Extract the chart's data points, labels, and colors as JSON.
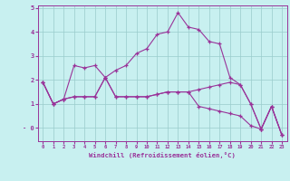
{
  "xlabel": "Windchill (Refroidissement éolien,°C)",
  "bg_color": "#c8f0f0",
  "line_color": "#993399",
  "grid_color": "#99cccc",
  "x_ticks": [
    0,
    1,
    2,
    3,
    4,
    5,
    6,
    7,
    8,
    9,
    10,
    11,
    12,
    13,
    14,
    15,
    16,
    17,
    18,
    19,
    20,
    21,
    22,
    23
  ],
  "y_ticks": [
    0,
    1,
    2,
    3,
    4,
    5
  ],
  "ylim": [
    -0.55,
    5.1
  ],
  "xlim": [
    -0.5,
    23.5
  ],
  "series": [
    [
      1.9,
      1.0,
      1.2,
      2.6,
      2.5,
      2.6,
      2.1,
      2.4,
      2.6,
      3.1,
      3.3,
      3.9,
      4.0,
      4.8,
      4.2,
      4.1,
      3.6,
      3.5,
      2.1,
      1.8,
      1.0,
      -0.05,
      0.9,
      -0.3
    ],
    [
      1.9,
      1.0,
      1.2,
      1.3,
      1.3,
      1.3,
      2.1,
      1.3,
      1.3,
      1.3,
      1.3,
      1.4,
      1.5,
      1.5,
      1.5,
      1.6,
      1.7,
      1.8,
      1.9,
      1.8,
      1.0,
      -0.05,
      0.9,
      -0.3
    ],
    [
      1.9,
      1.0,
      1.2,
      1.3,
      1.3,
      1.3,
      2.1,
      1.3,
      1.3,
      1.3,
      1.3,
      1.4,
      1.5,
      1.5,
      1.5,
      0.9,
      0.8,
      0.7,
      0.6,
      0.5,
      0.1,
      -0.05,
      0.9,
      -0.3
    ]
  ],
  "ytick_labels": [
    "- 0",
    "1",
    "2",
    "3",
    "4",
    "5"
  ]
}
